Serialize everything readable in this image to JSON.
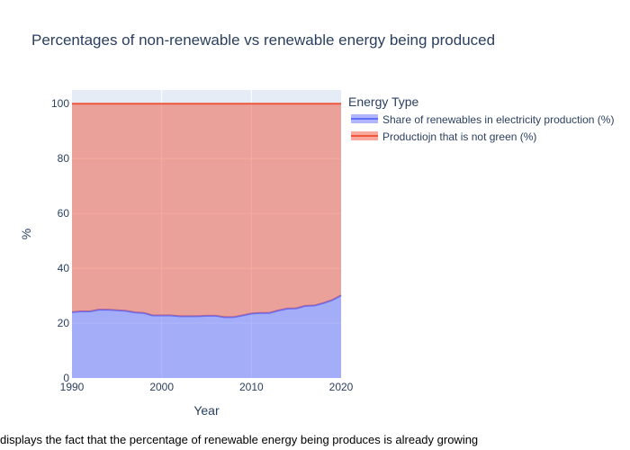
{
  "chart_data": {
    "type": "area",
    "title": "Percentages of non-renewable vs renewable energy being produced",
    "xlabel": "Year",
    "ylabel": "%",
    "xlim": [
      1990,
      2020
    ],
    "ylim": [
      0,
      105
    ],
    "x_ticks": [
      1990,
      2000,
      2010,
      2020
    ],
    "y_ticks": [
      0,
      20,
      40,
      60,
      80,
      100
    ],
    "grid": true,
    "stacked": true,
    "legend_title": "Energy Type",
    "legend_position": "top-right",
    "x": [
      1990,
      1991,
      1992,
      1993,
      1994,
      1995,
      1996,
      1997,
      1998,
      1999,
      2000,
      2001,
      2002,
      2003,
      2004,
      2005,
      2006,
      2007,
      2008,
      2009,
      2010,
      2011,
      2012,
      2013,
      2014,
      2015,
      2016,
      2017,
      2018,
      2019,
      2020
    ],
    "series": [
      {
        "name": "Share of renewables in electricity production (%)",
        "color": "#636efa",
        "values": [
          24.0,
          24.3,
          24.3,
          24.9,
          24.9,
          24.7,
          24.5,
          23.9,
          23.7,
          22.8,
          22.8,
          22.8,
          22.5,
          22.5,
          22.5,
          22.7,
          22.7,
          22.2,
          22.2,
          22.8,
          23.5,
          23.7,
          23.7,
          24.6,
          25.3,
          25.4,
          26.3,
          26.4,
          27.3,
          28.4,
          30.1
        ]
      },
      {
        "name": "Productiojn that is not green (%)",
        "color": "#ef553b",
        "values": [
          76.0,
          75.7,
          75.7,
          75.1,
          75.1,
          75.3,
          75.5,
          76.1,
          76.3,
          77.2,
          77.2,
          77.2,
          77.5,
          77.5,
          77.5,
          77.3,
          77.3,
          77.8,
          77.8,
          77.2,
          76.5,
          76.3,
          76.3,
          75.4,
          74.7,
          74.6,
          73.7,
          73.6,
          72.7,
          71.6,
          69.9
        ]
      }
    ],
    "annotation": "displays the fact that the percentage of renewable energy being produces is already growing"
  },
  "colors": {
    "plot_background": "#e5ecf6",
    "grid": "#ffffff",
    "text": "#2a3f5f"
  }
}
